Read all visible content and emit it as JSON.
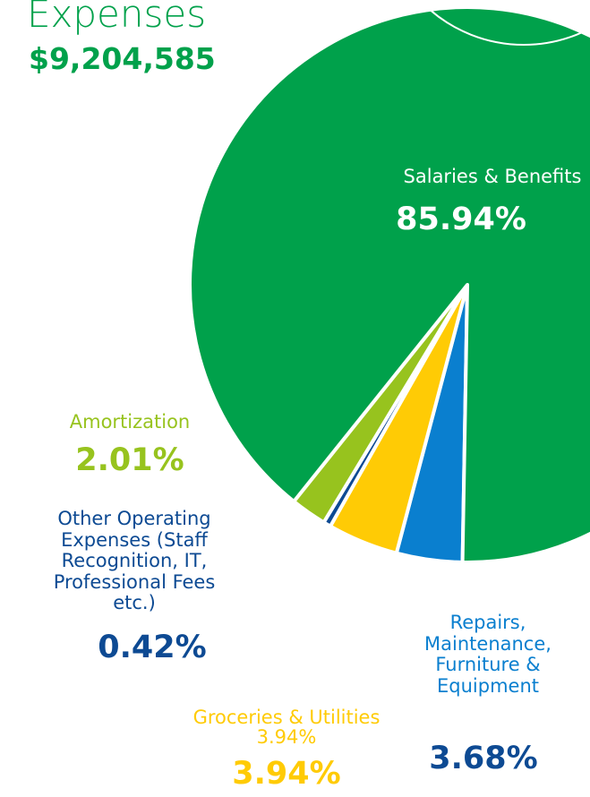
{
  "chart_data": {
    "type": "pie",
    "title": "Expenses",
    "subtitle": "$9,204,585",
    "categories": [
      "Repairs, Maintenance, Furniture & Equipment",
      "Groceries & Utilities 3.94%",
      "Other Operating Expenses (Staff Recognition, IT, Professional Fees etc.)",
      "Amortization",
      "Salaries & Benefits"
    ],
    "values": [
      3.68,
      3.94,
      0.42,
      2.01,
      85.94
    ],
    "value_labels": [
      "3.68%",
      "3.94%",
      "0.42%",
      "2.01%",
      "85.94%"
    ],
    "colors": [
      "#0a7fcf",
      "#ffcb05",
      "#0d4a93",
      "#97c31e",
      "#00a14b"
    ]
  }
}
